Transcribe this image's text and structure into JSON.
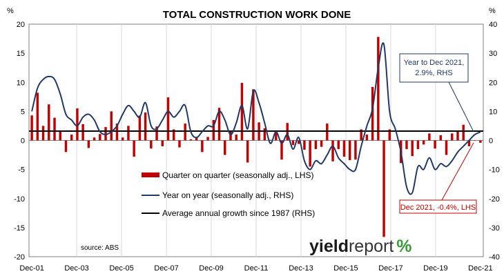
{
  "chart_data": {
    "type": "bar+line",
    "title": "TOTAL CONSTRUCTION WORK DONE",
    "y_left_unit": "%",
    "y_right_unit": "%",
    "y_left_range": [
      -20,
      20
    ],
    "y_left_ticks": [
      "20",
      "15",
      "10",
      "5",
      "0",
      "-5",
      "-10",
      "-15",
      "-20"
    ],
    "y_right_range": [
      -40,
      40
    ],
    "y_right_ticks": [
      "40",
      "30",
      "20",
      "10",
      "0",
      "-10",
      "-20",
      "-30",
      "-40"
    ],
    "x_tick_labels": [
      "Dec-01",
      "Dec-03",
      "Dec-05",
      "Dec-07",
      "Dec-09",
      "Dec-11",
      "Dec-13",
      "Dec-15",
      "Dec-17",
      "Dec-19",
      "Dec-21"
    ],
    "x_period_start": "Dec-01",
    "x_period_end": "Dec-21",
    "grid": "vertical",
    "legend": {
      "placement": "center",
      "items": [
        {
          "label": "Quarter on quarter (seasonally adj., LHS)",
          "kind": "bar",
          "color": "#c00000"
        },
        {
          "label": "Year on year (seasonally adj., RHS)",
          "kind": "line",
          "color": "#1f3864"
        },
        {
          "label": "Average annual growth since 1987 (RHS)",
          "kind": "line",
          "color": "#000000"
        }
      ]
    },
    "series": [
      {
        "name": "Quarter on quarter (seasonally adj., LHS)",
        "axis": "left",
        "values": [
          4.3,
          8.2,
          2.5,
          6.2,
          3.9,
          1.6,
          -2.0,
          1.0,
          5.5,
          2.8,
          -1.3,
          0.5,
          1.1,
          2.3,
          5.0,
          2.9,
          0.5,
          2.5,
          -2.8,
          4.3,
          4.8,
          -1.4,
          2.4,
          -1.0,
          7.4,
          1.9,
          -1.2,
          2.9,
          0.2,
          0.5,
          -2.0,
          0.6,
          3.5,
          5.6,
          -2.5,
          1.6,
          1.0,
          9.9,
          -3.8,
          8.8,
          3.1,
          2.1,
          0.1,
          1.7,
          -3.3,
          3.0,
          -0.8,
          -0.6,
          -1.6,
          -4.5,
          -1.5,
          -1.1,
          2.9,
          -3.6,
          -1.5,
          -2.8,
          -3.4,
          -3.3,
          1.9,
          1.0,
          9.2,
          17.8,
          -16.6,
          1.9,
          0.0,
          -3.9,
          -1.5,
          -2.7,
          -1.5,
          -0.7,
          1.2,
          -1.4,
          0.9,
          -2.5,
          1.2,
          1.5,
          2.7,
          -1.0,
          0.0,
          -0.4
        ]
      },
      {
        "name": "Year on year (seasonally adj., RHS)",
        "axis": "right",
        "values": [
          10,
          18,
          21,
          22,
          21,
          16,
          9,
          7,
          5,
          8,
          9,
          7,
          3,
          2,
          3,
          5,
          9,
          12,
          10,
          8,
          13,
          5,
          4,
          7,
          10,
          8,
          10,
          12,
          3,
          1,
          3,
          5,
          5,
          10,
          7,
          2,
          6,
          12,
          4,
          17,
          13,
          6,
          -1,
          3,
          -1,
          2,
          -3,
          1,
          -7,
          -10,
          -7,
          -8,
          -5,
          -2,
          -6,
          -8,
          -10,
          -10,
          -2,
          5,
          11,
          25,
          33,
          10,
          4,
          -4,
          -16,
          -18,
          -9,
          -10,
          -6,
          -10,
          -8,
          -9,
          -7,
          -4,
          -2,
          0,
          2,
          2.9
        ]
      },
      {
        "name": "Average annual growth since 1987 (RHS)",
        "axis": "right",
        "values": [
          3.2
        ]
      }
    ],
    "annotations": [
      {
        "text_lines": [
          "Year to Dec 2021,",
          "2.9%, RHS"
        ],
        "color": "#1f3864"
      },
      {
        "text_lines": [
          "Dec 2021, -0.4%, LHS"
        ],
        "color": "#c00000"
      }
    ],
    "source_note": "source: ABS",
    "brand": {
      "part1": "yield",
      "part2": "report",
      "part3": "%"
    },
    "colors": {
      "bar": "#c00000",
      "line": "#1f3864",
      "avg": "#000000",
      "brand_green": "#3a9a3a",
      "brand_red": "#c00000"
    }
  }
}
